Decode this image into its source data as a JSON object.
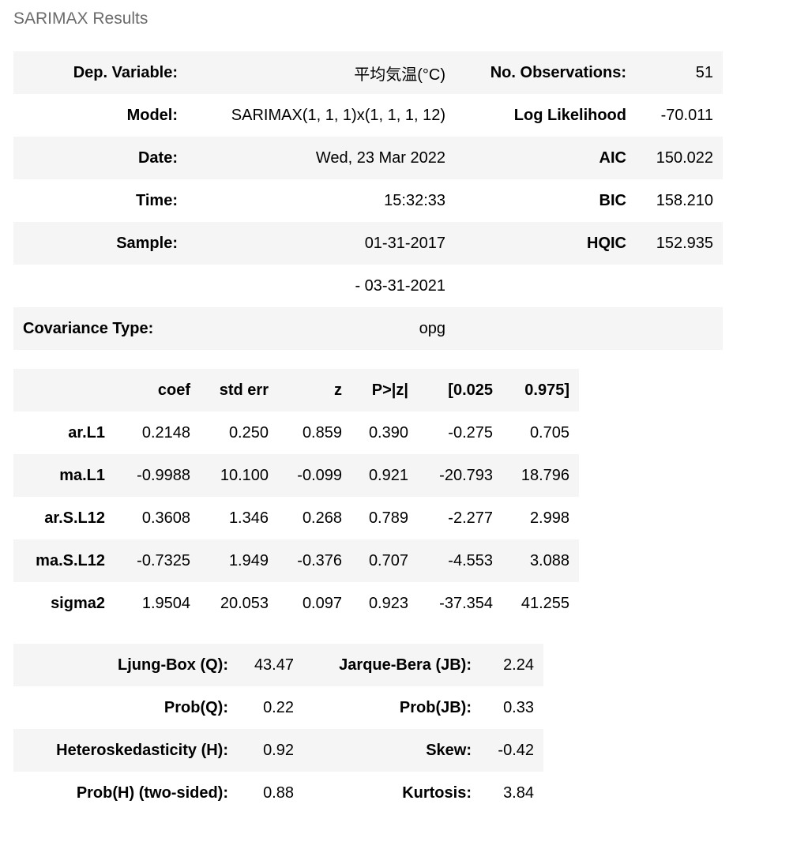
{
  "title": "SARIMAX Results",
  "info_table": {
    "rows": [
      [
        "Dep. Variable:",
        "平均気温(°C)",
        "No. Observations:",
        "51"
      ],
      [
        "Model:",
        "SARIMAX(1, 1, 1)x(1, 1, 1, 12)",
        "Log Likelihood",
        "-70.011"
      ],
      [
        "Date:",
        "Wed, 23 Mar 2022",
        "AIC",
        "150.022"
      ],
      [
        "Time:",
        "15:32:33",
        "BIC",
        "158.210"
      ],
      [
        "Sample:",
        "01-31-2017",
        "HQIC",
        "152.935"
      ],
      [
        "",
        "- 03-31-2021",
        "",
        ""
      ],
      [
        "Covariance Type:",
        "opg",
        "",
        ""
      ]
    ]
  },
  "coef_table": {
    "headers": [
      "",
      "coef",
      "std err",
      "z",
      "P>|z|",
      "[0.025",
      "0.975]"
    ],
    "rows": [
      [
        "ar.L1",
        "0.2148",
        "0.250",
        "0.859",
        "0.390",
        "-0.275",
        "0.705"
      ],
      [
        "ma.L1",
        "-0.9988",
        "10.100",
        "-0.099",
        "0.921",
        "-20.793",
        "18.796"
      ],
      [
        "ar.S.L12",
        "0.3608",
        "1.346",
        "0.268",
        "0.789",
        "-2.277",
        "2.998"
      ],
      [
        "ma.S.L12",
        "-0.7325",
        "1.949",
        "-0.376",
        "0.707",
        "-4.553",
        "3.088"
      ],
      [
        "sigma2",
        "1.9504",
        "20.053",
        "0.097",
        "0.923",
        "-37.354",
        "41.255"
      ]
    ]
  },
  "diag_table": {
    "rows": [
      [
        "Ljung-Box (Q):",
        "43.47",
        "Jarque-Bera (JB):",
        "2.24"
      ],
      [
        "Prob(Q):",
        "0.22",
        "Prob(JB):",
        "0.33"
      ],
      [
        "Heteroskedasticity (H):",
        "0.92",
        "Skew:",
        "-0.42"
      ],
      [
        "Prob(H) (two-sided):",
        "0.88",
        "Kurtosis:",
        "3.84"
      ]
    ]
  }
}
